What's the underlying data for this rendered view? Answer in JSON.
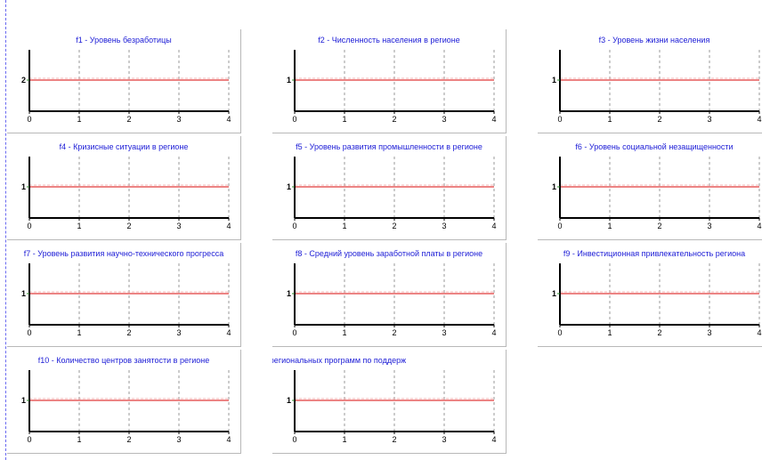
{
  "chart_data": [
    {
      "type": "line",
      "title": "f1 - Уровень безработицы",
      "x": [
        0,
        4
      ],
      "series": [
        {
          "values": [
            2,
            2
          ]
        }
      ],
      "xticks": [
        0,
        1,
        2,
        3,
        4
      ],
      "yticks": [
        2
      ],
      "xlim": [
        0,
        4
      ],
      "grid": "vertical dashed",
      "colors": {
        "line": "#e03a3a",
        "axis": "#000000",
        "grid": "#808080",
        "title": "#1c1cd6"
      }
    },
    {
      "type": "line",
      "title": "f2 - Численность населения в регионе",
      "x": [
        0,
        4
      ],
      "series": [
        {
          "values": [
            1,
            1
          ]
        }
      ],
      "xticks": [
        0,
        1,
        2,
        3,
        4
      ],
      "yticks": [
        1
      ],
      "xlim": [
        0,
        4
      ],
      "grid": "vertical dashed",
      "colors": {
        "line": "#e03a3a",
        "axis": "#000000",
        "grid": "#808080",
        "title": "#1c1cd6"
      }
    },
    {
      "type": "line",
      "title": "f3 - Уровень жизни населения",
      "x": [
        0,
        4
      ],
      "series": [
        {
          "values": [
            1,
            1
          ]
        }
      ],
      "xticks": [
        0,
        1,
        2,
        3,
        4
      ],
      "yticks": [
        1
      ],
      "xlim": [
        0,
        4
      ],
      "grid": "vertical dashed",
      "colors": {
        "line": "#e03a3a",
        "axis": "#000000",
        "grid": "#808080",
        "title": "#1c1cd6"
      }
    },
    {
      "type": "line",
      "title": "f4 - Кризисные ситуации в регионе",
      "x": [
        0,
        4
      ],
      "series": [
        {
          "values": [
            1,
            1
          ]
        }
      ],
      "xticks": [
        0,
        1,
        2,
        3,
        4
      ],
      "yticks": [
        1
      ],
      "xlim": [
        0,
        4
      ],
      "grid": "vertical dashed",
      "colors": {
        "line": "#e03a3a",
        "axis": "#000000",
        "grid": "#808080",
        "title": "#1c1cd6"
      }
    },
    {
      "type": "line",
      "title": "f5 - Уровень развития промышленности в регионе",
      "x": [
        0,
        4
      ],
      "series": [
        {
          "values": [
            1,
            1
          ]
        }
      ],
      "xticks": [
        0,
        1,
        2,
        3,
        4
      ],
      "yticks": [
        1
      ],
      "xlim": [
        0,
        4
      ],
      "grid": "vertical dashed",
      "colors": {
        "line": "#e03a3a",
        "axis": "#000000",
        "grid": "#808080",
        "title": "#1c1cd6"
      }
    },
    {
      "type": "line",
      "title": "f6 - Уровень социальной незащищенности",
      "x": [
        0,
        4
      ],
      "series": [
        {
          "values": [
            1,
            1
          ]
        }
      ],
      "xticks": [
        0,
        1,
        2,
        3,
        4
      ],
      "yticks": [
        1
      ],
      "xlim": [
        0,
        4
      ],
      "grid": "vertical dashed",
      "colors": {
        "line": "#e03a3a",
        "axis": "#000000",
        "grid": "#808080",
        "title": "#1c1cd6"
      }
    },
    {
      "type": "line",
      "title": "f7 - Уровень развития научно-технического прогресса",
      "x": [
        0,
        4
      ],
      "series": [
        {
          "values": [
            1,
            1
          ]
        }
      ],
      "xticks": [
        0,
        1,
        2,
        3,
        4
      ],
      "yticks": [
        1
      ],
      "xlim": [
        0,
        4
      ],
      "grid": "vertical dashed",
      "colors": {
        "line": "#e03a3a",
        "axis": "#000000",
        "grid": "#808080",
        "title": "#1c1cd6"
      }
    },
    {
      "type": "line",
      "title": "f8 - Средний уровень заработной платы в регионе",
      "x": [
        0,
        4
      ],
      "series": [
        {
          "values": [
            1,
            1
          ]
        }
      ],
      "xticks": [
        0,
        1,
        2,
        3,
        4
      ],
      "yticks": [
        1
      ],
      "xlim": [
        0,
        4
      ],
      "grid": "vertical dashed",
      "colors": {
        "line": "#e03a3a",
        "axis": "#000000",
        "grid": "#808080",
        "title": "#1c1cd6"
      }
    },
    {
      "type": "line",
      "title": "f9 - Инвестиционная привлекательность региона",
      "x": [
        0,
        4
      ],
      "series": [
        {
          "values": [
            1,
            1
          ]
        }
      ],
      "xticks": [
        0,
        1,
        2,
        3,
        4
      ],
      "yticks": [
        1
      ],
      "xlim": [
        0,
        4
      ],
      "grid": "vertical dashed",
      "colors": {
        "line": "#e03a3a",
        "axis": "#000000",
        "grid": "#808080",
        "title": "#1c1cd6"
      }
    },
    {
      "type": "line",
      "title": "f10 - Количество центров занятости в регионе",
      "x": [
        0,
        4
      ],
      "series": [
        {
          "values": [
            1,
            1
          ]
        }
      ],
      "xticks": [
        0,
        1,
        2,
        3,
        4
      ],
      "yticks": [
        1
      ],
      "xlim": [
        0,
        4
      ],
      "grid": "vertical dashed",
      "colors": {
        "line": "#e03a3a",
        "axis": "#000000",
        "grid": "#808080",
        "title": "#1c1cd6"
      }
    },
    {
      "type": "line",
      "title": "о государственных и региональных программ по поддерж",
      "x": [
        0,
        4
      ],
      "series": [
        {
          "values": [
            1,
            1
          ]
        }
      ],
      "xticks": [
        0,
        1,
        2,
        3,
        4
      ],
      "yticks": [
        1
      ],
      "xlim": [
        0,
        4
      ],
      "grid": "vertical dashed",
      "colors": {
        "line": "#e03a3a",
        "axis": "#000000",
        "grid": "#808080",
        "title": "#1c1cd6"
      }
    }
  ]
}
